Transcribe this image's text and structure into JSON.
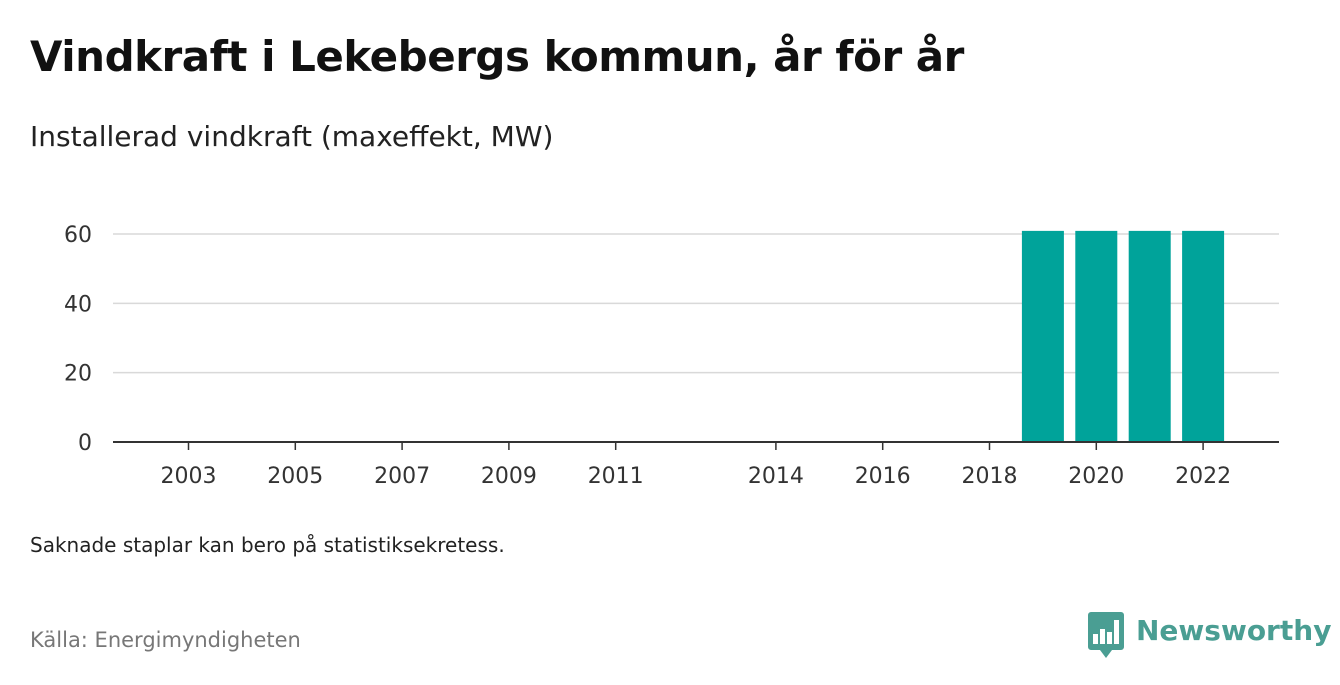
{
  "header": {
    "title": "Vindkraft i Lekebergs kommun, år för år",
    "subtitle": "Installerad vindkraft (maxeffekt, MW)"
  },
  "footer": {
    "note": "Saknade staplar kan bero på statistiksekretess.",
    "source": "Källa: Energimyndigheten",
    "brand": "Newsworthy"
  },
  "colors": {
    "bar": "#00a39a",
    "grid": "#d9d9d9",
    "axis": "#333333",
    "brand": "#4a9e93"
  },
  "chart_data": {
    "type": "bar",
    "title": "Vindkraft i Lekebergs kommun, år för år",
    "subtitle": "Installerad vindkraft (maxeffekt, MW)",
    "xlabel": "",
    "ylabel": "",
    "categories": [
      2003,
      2004,
      2005,
      2006,
      2007,
      2008,
      2009,
      2010,
      2011,
      2012,
      2013,
      2014,
      2015,
      2016,
      2017,
      2018,
      2019,
      2020,
      2021,
      2022
    ],
    "values": [
      0,
      0,
      0,
      0,
      0,
      0,
      0,
      0,
      0,
      0,
      0,
      0,
      0,
      0,
      0,
      0,
      60.9,
      60.9,
      60.9,
      60.9
    ],
    "xticks": [
      "2003",
      "2005",
      "2007",
      "2009",
      "2011",
      "2014",
      "2016",
      "2018",
      "2020",
      "2022"
    ],
    "yticks": [
      0,
      20,
      40,
      60
    ],
    "ylim": [
      0,
      62
    ],
    "grid": true,
    "legend": "none"
  }
}
